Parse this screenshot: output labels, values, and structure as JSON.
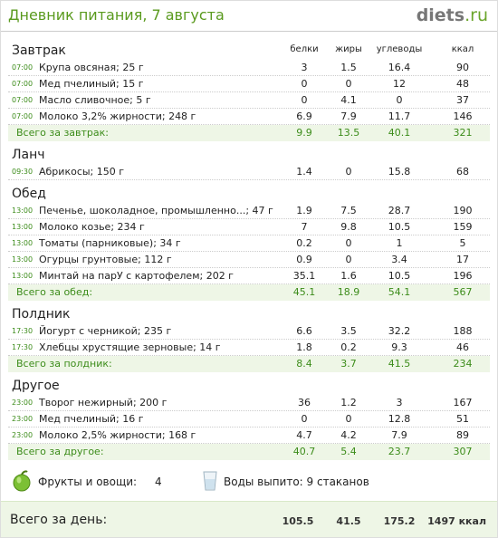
{
  "header": {
    "title": "Дневник питания, 7 августа",
    "logo_main": "diets",
    "logo_suffix": ".ru"
  },
  "columns": [
    "белки",
    "жиры",
    "углеводы",
    "ккал"
  ],
  "meals": [
    {
      "name": "Завтрак",
      "rows": [
        {
          "time": "07:00",
          "food": "Крупа овсяная; 25 г",
          "values": [
            3,
            1.5,
            16.4,
            90
          ]
        },
        {
          "time": "07:00",
          "food": "Мед пчелиный; 15 г",
          "values": [
            0,
            0,
            12,
            48
          ]
        },
        {
          "time": "07:00",
          "food": "Масло сливочное; 5 г",
          "values": [
            0,
            4.1,
            0,
            37
          ]
        },
        {
          "time": "07:00",
          "food": "Молоко 3,2% жирности; 248 г",
          "values": [
            6.9,
            7.9,
            11.7,
            146
          ]
        }
      ],
      "total": {
        "label": "Всего за завтрак:",
        "values": [
          9.9,
          13.5,
          40.1,
          321
        ]
      }
    },
    {
      "name": "Ланч",
      "rows": [
        {
          "time": "09:30",
          "food": "Абрикосы; 150 г",
          "values": [
            1.4,
            0,
            15.8,
            68
          ]
        }
      ]
    },
    {
      "name": "Обед",
      "rows": [
        {
          "time": "13:00",
          "food": "Печенье, шоколадное, промышленно...; 47 г",
          "values": [
            1.9,
            7.5,
            28.7,
            190
          ]
        },
        {
          "time": "13:00",
          "food": "Молоко козье; 234 г",
          "values": [
            7,
            9.8,
            10.5,
            159
          ]
        },
        {
          "time": "13:00",
          "food": "Томаты (парниковые); 34 г",
          "values": [
            0.2,
            0,
            1,
            5
          ]
        },
        {
          "time": "13:00",
          "food": "Огурцы грунтовые; 112 г",
          "values": [
            0.9,
            0,
            3.4,
            17
          ]
        },
        {
          "time": "13:00",
          "food": "Минтай на парУ с картофелем; 202 г",
          "values": [
            35.1,
            1.6,
            10.5,
            196
          ]
        }
      ],
      "total": {
        "label": "Всего за обед:",
        "values": [
          45.1,
          18.9,
          54.1,
          567
        ]
      }
    },
    {
      "name": "Полдник",
      "rows": [
        {
          "time": "17:30",
          "food": "Йогурт с черникой; 235 г",
          "values": [
            6.6,
            3.5,
            32.2,
            188
          ]
        },
        {
          "time": "17:30",
          "food": "Хлебцы хрустящие зерновые; 14 г",
          "values": [
            1.8,
            0.2,
            9.3,
            46
          ]
        }
      ],
      "total": {
        "label": "Всего за полдник:",
        "values": [
          8.4,
          3.7,
          41.5,
          234
        ]
      }
    },
    {
      "name": "Другое",
      "rows": [
        {
          "time": "23:00",
          "food": "Творог нежирный; 200 г",
          "values": [
            36,
            1.2,
            3,
            167
          ]
        },
        {
          "time": "23:00",
          "food": "Мед пчелиный; 16 г",
          "values": [
            0,
            0,
            12.8,
            51
          ]
        },
        {
          "time": "23:00",
          "food": "Молоко 2,5% жирности; 168 г",
          "values": [
            4.7,
            4.2,
            7.9,
            89
          ]
        }
      ],
      "total": {
        "label": "Всего за другое:",
        "values": [
          40.7,
          5.4,
          23.7,
          307
        ]
      }
    }
  ],
  "footer": {
    "fruits_label": "Фрукты и овощи:",
    "fruits_value": 4,
    "water_text": "Воды выпито: 9 стаканов"
  },
  "day_total": {
    "label": "Всего за день:",
    "values": [
      105.5,
      41.5,
      175.2
    ],
    "kcal": "1497 ккал"
  }
}
